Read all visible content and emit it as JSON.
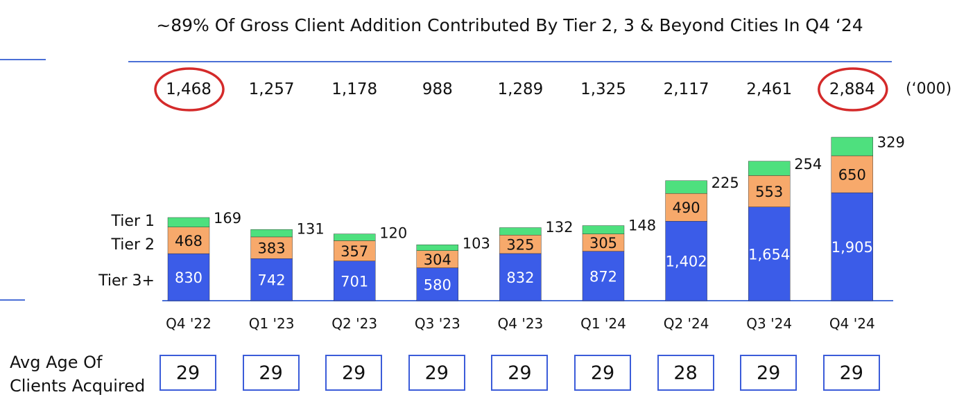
{
  "title": "~89% Of Gross Client Addition Contributed By Tier 2, 3 & Beyond Cities In Q4 ‘24",
  "unit": "(‘000)",
  "tier_labels": {
    "tier1": "Tier 1",
    "tier2": "Tier 2",
    "tier3": "Tier 3+"
  },
  "avg_age_label_line1": "Avg Age Of",
  "avg_age_label_line2": "Clients Acquired",
  "colors": {
    "tier3": "#3b5ce8",
    "tier2": "#f7a96b",
    "tier1": "#4ee07e",
    "circle": "#d42a2a",
    "rule": "#4a6fd6",
    "box": "#3b5cd9"
  },
  "highlighted_totals": [
    "Q4 '22",
    "Q4 '24"
  ],
  "chart_data": {
    "type": "bar",
    "stacked": true,
    "title": "~89% Of Gross Client Addition Contributed By Tier 2, 3 & Beyond Cities In Q4 ‘24",
    "categories": [
      "Q4 '22",
      "Q1 '23",
      "Q2 '23",
      "Q3 '23",
      "Q4 '23",
      "Q1 '24",
      "Q2 '24",
      "Q3 '24",
      "Q4 '24"
    ],
    "series": [
      {
        "name": "Tier 3+",
        "values": [
          830,
          742,
          701,
          580,
          832,
          872,
          1402,
          1654,
          1905
        ],
        "labels": [
          "830",
          "742",
          "701",
          "580",
          "832",
          "872",
          "1,402",
          "1,654",
          "1,905"
        ]
      },
      {
        "name": "Tier 2",
        "values": [
          468,
          383,
          357,
          304,
          325,
          305,
          490,
          553,
          650
        ],
        "labels": [
          "468",
          "383",
          "357",
          "304",
          "325",
          "305",
          "490",
          "553",
          "650"
        ]
      },
      {
        "name": "Tier 1",
        "values": [
          169,
          131,
          120,
          103,
          132,
          148,
          225,
          254,
          329
        ],
        "labels": [
          "169",
          "131",
          "120",
          "103",
          "132",
          "148",
          "225",
          "254",
          "329"
        ]
      }
    ],
    "totals": [
      "1,468",
      "1,257",
      "1,178",
      "988",
      "1,289",
      "1,325",
      "2,117",
      "2,461",
      "2,884"
    ],
    "avg_age": [
      "29",
      "29",
      "29",
      "29",
      "29",
      "29",
      "28",
      "29",
      "29"
    ],
    "ylim": [
      0,
      3000
    ],
    "grid": false
  }
}
